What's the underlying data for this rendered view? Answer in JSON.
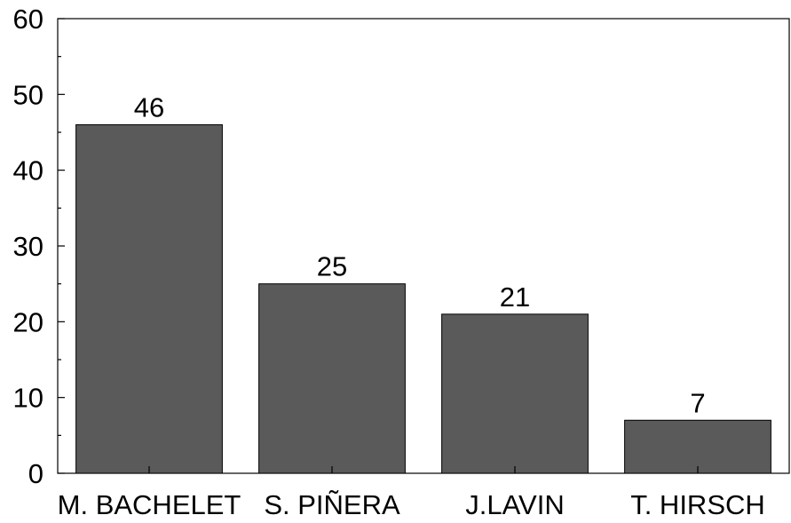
{
  "chart_data": {
    "type": "bar",
    "title": "",
    "xlabel": "",
    "ylabel": "",
    "categories": [
      "M. BACHELET",
      "S. PIÑERA",
      "J.LAVIN",
      "T. HIRSCH"
    ],
    "values": [
      46,
      25,
      21,
      7
    ],
    "data_labels": [
      "46",
      "25",
      "21",
      "7"
    ],
    "ylim": [
      0,
      60
    ],
    "yticks": [
      0,
      10,
      20,
      30,
      40,
      50,
      60
    ],
    "ytick_labels": [
      "0",
      "10",
      "20",
      "30",
      "40",
      "50",
      "60"
    ],
    "grid": false,
    "legend": "none",
    "colors": {
      "bar_fill": "#5a5a5a",
      "bar_stroke": "#000000",
      "axis": "#000000"
    }
  }
}
